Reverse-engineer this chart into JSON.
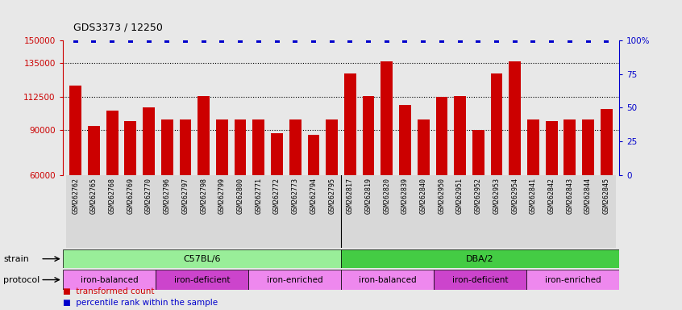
{
  "title": "GDS3373 / 12250",
  "samples": [
    "GSM262762",
    "GSM262765",
    "GSM262768",
    "GSM262769",
    "GSM262770",
    "GSM262796",
    "GSM262797",
    "GSM262798",
    "GSM262799",
    "GSM262800",
    "GSM262771",
    "GSM262772",
    "GSM262773",
    "GSM262794",
    "GSM262795",
    "GSM262817",
    "GSM262819",
    "GSM262820",
    "GSM262839",
    "GSM262840",
    "GSM262950",
    "GSM262951",
    "GSM262952",
    "GSM262953",
    "GSM262954",
    "GSM262841",
    "GSM262842",
    "GSM262843",
    "GSM262844",
    "GSM262845"
  ],
  "bar_values": [
    120000,
    93000,
    103000,
    96000,
    105000,
    97000,
    97000,
    113000,
    97000,
    97000,
    97000,
    88000,
    97000,
    87000,
    97000,
    128000,
    113000,
    136000,
    107000,
    97000,
    112000,
    113000,
    90000,
    128000,
    136000,
    97000,
    96000,
    97000,
    97000,
    104000
  ],
  "bar_color": "#cc0000",
  "percentile_color": "#0000cc",
  "ylim_left": [
    60000,
    150000
  ],
  "ylim_right": [
    0,
    100
  ],
  "yticks_left": [
    60000,
    90000,
    112500,
    135000,
    150000
  ],
  "ytick_labels_left": [
    "60000",
    "90000",
    "112500",
    "135000",
    "150000"
  ],
  "yticks_right": [
    0,
    25,
    50,
    75,
    100
  ],
  "ytick_labels_right": [
    "0",
    "25",
    "50",
    "75",
    "100%"
  ],
  "grid_values": [
    90000,
    112500,
    135000
  ],
  "strain_groups": [
    {
      "label": "C57BL/6",
      "start": 0,
      "end": 15,
      "color": "#99ee99"
    },
    {
      "label": "DBA/2",
      "start": 15,
      "end": 30,
      "color": "#44cc44"
    }
  ],
  "protocol_groups": [
    {
      "label": "iron-balanced",
      "start": 0,
      "end": 5,
      "color": "#ee88ee"
    },
    {
      "label": "iron-deficient",
      "start": 5,
      "end": 10,
      "color": "#cc44cc"
    },
    {
      "label": "iron-enriched",
      "start": 10,
      "end": 15,
      "color": "#ee88ee"
    },
    {
      "label": "iron-balanced",
      "start": 15,
      "end": 20,
      "color": "#ee88ee"
    },
    {
      "label": "iron-deficient",
      "start": 20,
      "end": 25,
      "color": "#cc44cc"
    },
    {
      "label": "iron-enriched",
      "start": 25,
      "end": 30,
      "color": "#ee88ee"
    }
  ],
  "bg_color": "#e8e8e8",
  "plot_bg_color": "#e8e8e8",
  "xtick_bg": "#d8d8d8"
}
